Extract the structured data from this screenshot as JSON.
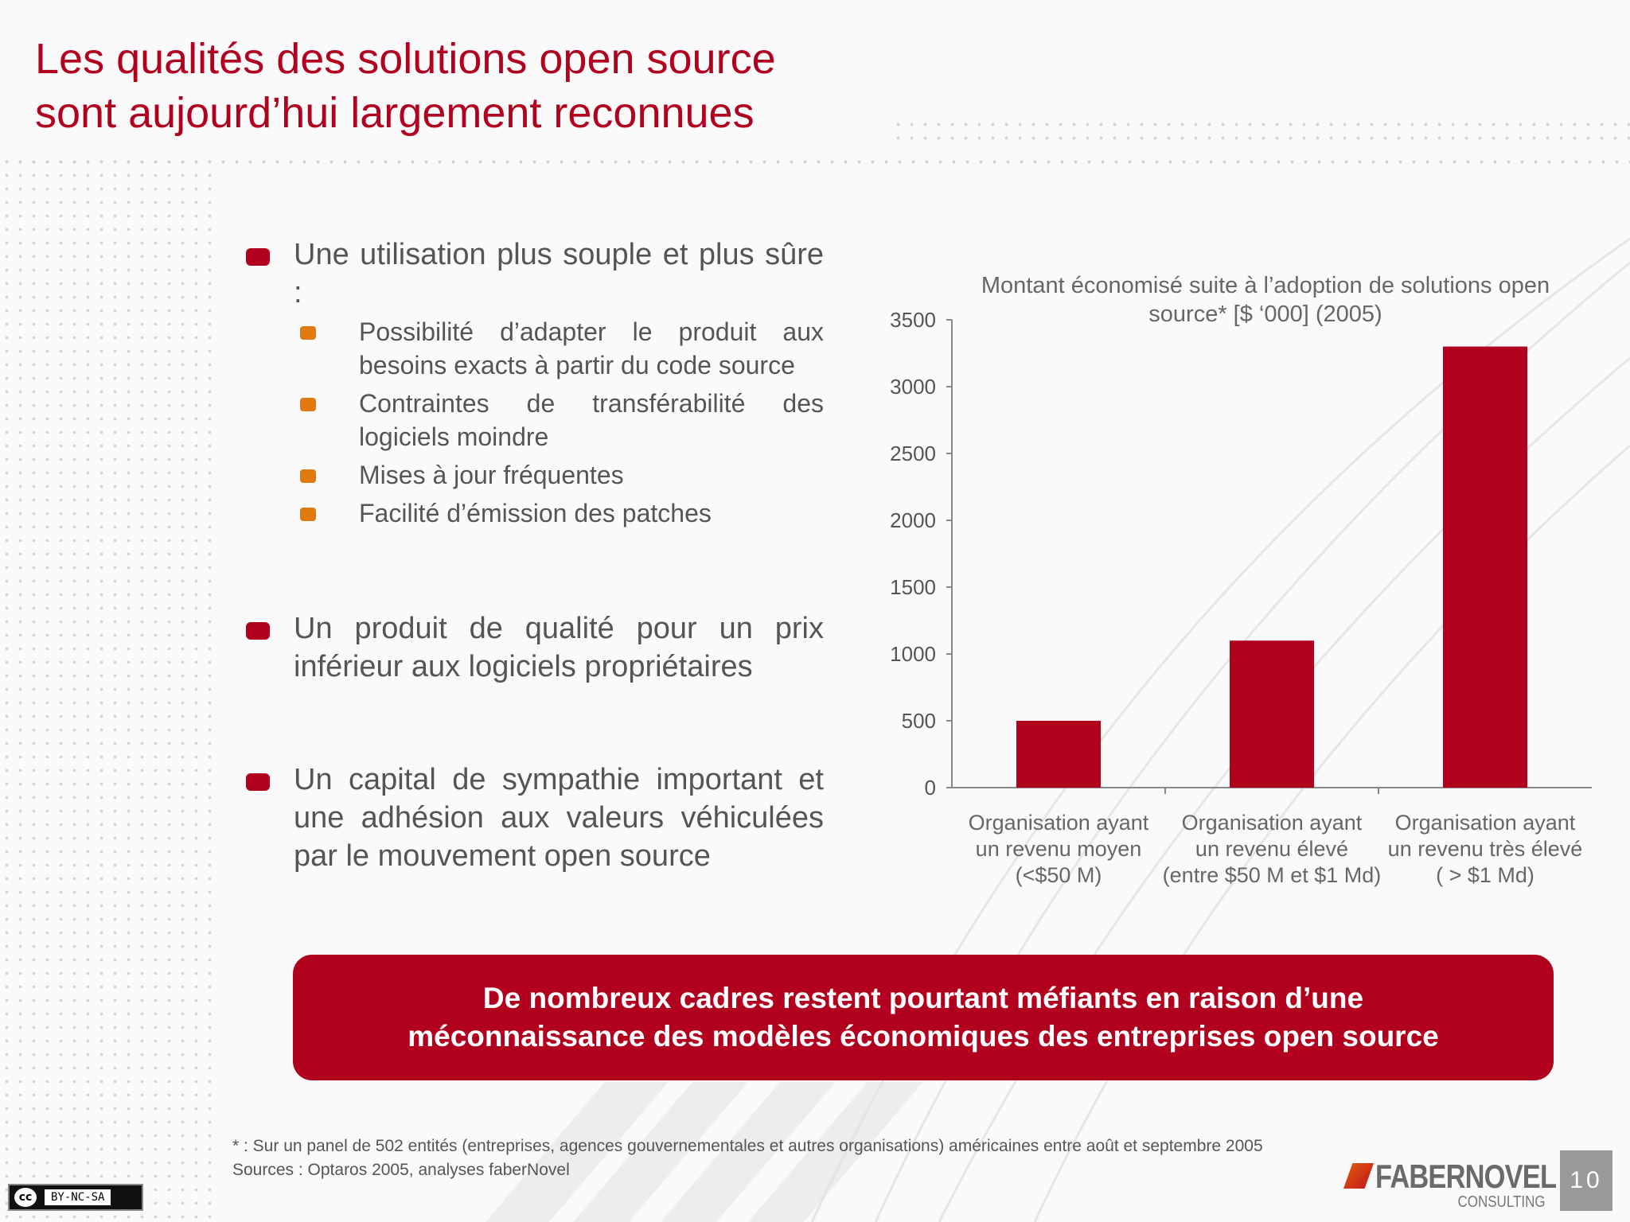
{
  "slide": {
    "title_lines": [
      "Les qualités des solutions open source",
      "sont aujourd’hui largement reconnues"
    ],
    "page_number": "10"
  },
  "bullets": [
    {
      "text": "Une utilisation plus souple et plus sûre :",
      "sub": [
        "Possibilité d’adapter le produit aux besoins exacts à partir du code source",
        "Contraintes de transférabilité des logiciels moindre",
        "Mises à jour fréquentes",
        "Facilité d’émission des patches"
      ]
    },
    {
      "text": "Un produit de qualité pour un prix inférieur aux logiciels propriétaires"
    },
    {
      "text": "Un capital de sympathie important et une adhésion aux valeurs véhiculées par le mouvement open source"
    }
  ],
  "chart_data": {
    "type": "bar",
    "title_lines": [
      "Montant économisé suite à l’adoption de solutions open",
      "source* [$ ‘000] (2005)"
    ],
    "categories": [
      [
        "Organisation ayant",
        "un revenu moyen",
        "(<$50 M)"
      ],
      [
        "Organisation ayant",
        "un revenu élevé",
        "(entre $50 M et $1 Md)"
      ],
      [
        "Organisation ayant",
        "un revenu très élevé",
        "( > $1 Md)"
      ]
    ],
    "values": [
      500,
      1100,
      3300
    ],
    "ylim": [
      0,
      3500
    ],
    "yticks": [
      "0",
      "500",
      "1000",
      "1500",
      "2000",
      "2500",
      "3000",
      "3500"
    ],
    "bar_color": "#b2001f",
    "grid": false
  },
  "callout": {
    "lines": [
      "De nombreux cadres restent  pourtant méfiants en raison d’une",
      "méconnaissance des modèles économiques des entreprises open source"
    ]
  },
  "footnote": {
    "note": "* : Sur  un panel de 502 entités (entreprises, agences gouvernementales et autres organisations) américaines entre août et septembre 2005",
    "sources": "Sources : Optaros 2005, analyses faberNovel"
  },
  "license": {
    "badge_left": "cc",
    "badge_right": "BY-NC-SA"
  },
  "logo": {
    "name": "FABERNOVEL",
    "sub": "CONSULTING"
  },
  "colors": {
    "accent": "#b2001f",
    "sub_bullet": "#e07a10",
    "text": "#555555"
  }
}
